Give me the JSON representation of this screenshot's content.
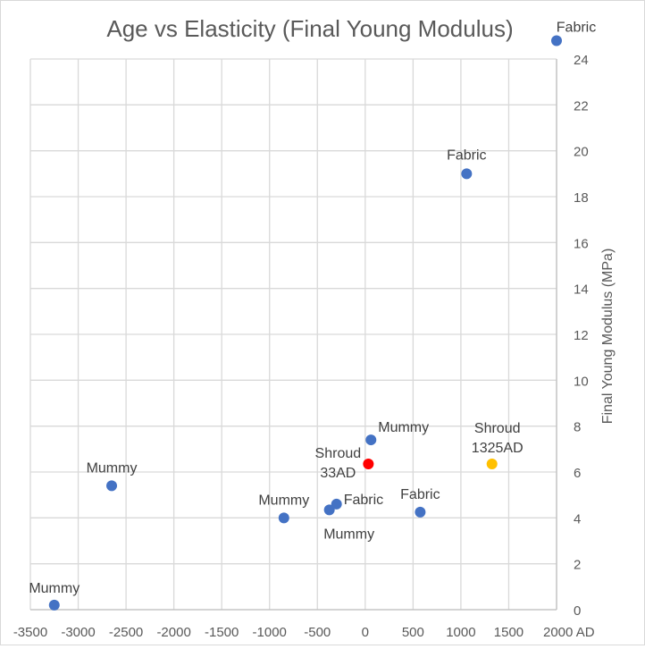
{
  "chart_data": {
    "type": "scatter",
    "title": "Age vs Elasticity (Final Young Modulus)",
    "ylabel": "Final Young Modulus (MPa)",
    "xlabel": "",
    "xlim": [
      -3500,
      2000
    ],
    "ylim": [
      0,
      24
    ],
    "xticks": [
      -3500,
      -3000,
      -2500,
      -2000,
      -1500,
      -1000,
      -500,
      0,
      500,
      1000,
      1500,
      2000
    ],
    "xtick_labels": [
      "-3500",
      "-3000",
      "-2500",
      "-2000",
      "-1500",
      "-1000",
      "-500",
      "0",
      "500",
      "1000",
      "1500",
      "2000 AD"
    ],
    "yticks": [
      0,
      2,
      4,
      6,
      8,
      10,
      12,
      14,
      16,
      18,
      20,
      22,
      24
    ],
    "grid": true,
    "points": [
      {
        "x": -3250,
        "y": 0.2,
        "label": "Mummy",
        "color": "#4472c4"
      },
      {
        "x": -2650,
        "y": 5.4,
        "label": "Mummy",
        "color": "#4472c4"
      },
      {
        "x": -850,
        "y": 4.0,
        "label": "Mummy",
        "color": "#4472c4"
      },
      {
        "x": -375,
        "y": 4.35,
        "label": "Mummy",
        "color": "#4472c4"
      },
      {
        "x": -300,
        "y": 4.6,
        "label": "Fabric",
        "color": "#4472c4"
      },
      {
        "x": 60,
        "y": 7.4,
        "label": "Mummy",
        "color": "#4472c4"
      },
      {
        "x": 33,
        "y": 6.35,
        "label": "Shroud 33AD",
        "color": "#ff0000"
      },
      {
        "x": 575,
        "y": 4.25,
        "label": "Fabric",
        "color": "#4472c4"
      },
      {
        "x": 1060,
        "y": 19.0,
        "label": "Fabric",
        "color": "#4472c4"
      },
      {
        "x": 1325,
        "y": 6.35,
        "label": "Shroud 1325AD",
        "color": "#ffc000"
      },
      {
        "x": 2000,
        "y": 24.8,
        "label": "Fabric",
        "color": "#4472c4"
      }
    ]
  }
}
